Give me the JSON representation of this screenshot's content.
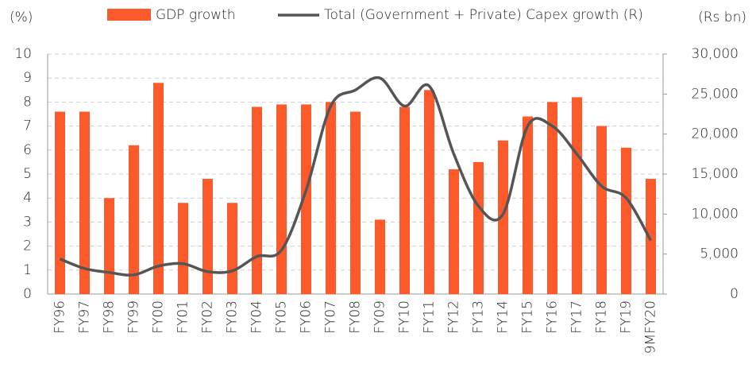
{
  "chart_data": {
    "type": "bar_line",
    "y_label": "(%)",
    "y2_label": "(Rs bn)",
    "categories": [
      "FY96",
      "FY97",
      "FY98",
      "FY99",
      "FY00",
      "FY01",
      "FY02",
      "FY03",
      "FY04",
      "FY05",
      "FY06",
      "FY07",
      "FY08",
      "FY09",
      "FY10",
      "FY11",
      "FY12",
      "FY13",
      "FY14",
      "FY15",
      "FY16",
      "FY17",
      "FY18",
      "FY19",
      "9MFY20"
    ],
    "series": [
      {
        "name": "GDP growth",
        "type": "bar",
        "color": "#fc5a2b",
        "values": [
          7.6,
          7.6,
          4.0,
          6.2,
          8.8,
          3.8,
          4.8,
          3.8,
          7.8,
          7.9,
          7.9,
          8.0,
          7.6,
          3.1,
          7.8,
          8.5,
          5.2,
          5.5,
          6.4,
          7.4,
          8.0,
          8.2,
          7.0,
          6.1,
          4.8
        ]
      },
      {
        "name": "Total (Government + Private) Capex growth (R)",
        "type": "line",
        "axis": "y2",
        "color": "#555555",
        "values": [
          4400,
          3200,
          2700,
          2400,
          3500,
          3800,
          2800,
          2900,
          4700,
          5500,
          13000,
          23500,
          25500,
          27000,
          23500,
          26000,
          17500,
          11000,
          10000,
          21000,
          21000,
          17500,
          13500,
          12000,
          6700
        ]
      }
    ],
    "ylim": [
      0,
      10
    ],
    "yticks": [
      0,
      1,
      2,
      3,
      4,
      5,
      6,
      7,
      8,
      9,
      10
    ],
    "y2lim": [
      0,
      30000
    ],
    "y2ticks": [
      0,
      {
        "value": 5000,
        "label": "5,000"
      },
      {
        "value": 10000,
        "label": "10,000"
      },
      {
        "value": 15000,
        "label": "15,000"
      },
      {
        "value": 20000,
        "label": "20,000"
      },
      {
        "value": 25000,
        "label": "25,000"
      },
      {
        "value": 30000,
        "label": "30,000"
      }
    ],
    "grid": true,
    "legend": "top"
  }
}
